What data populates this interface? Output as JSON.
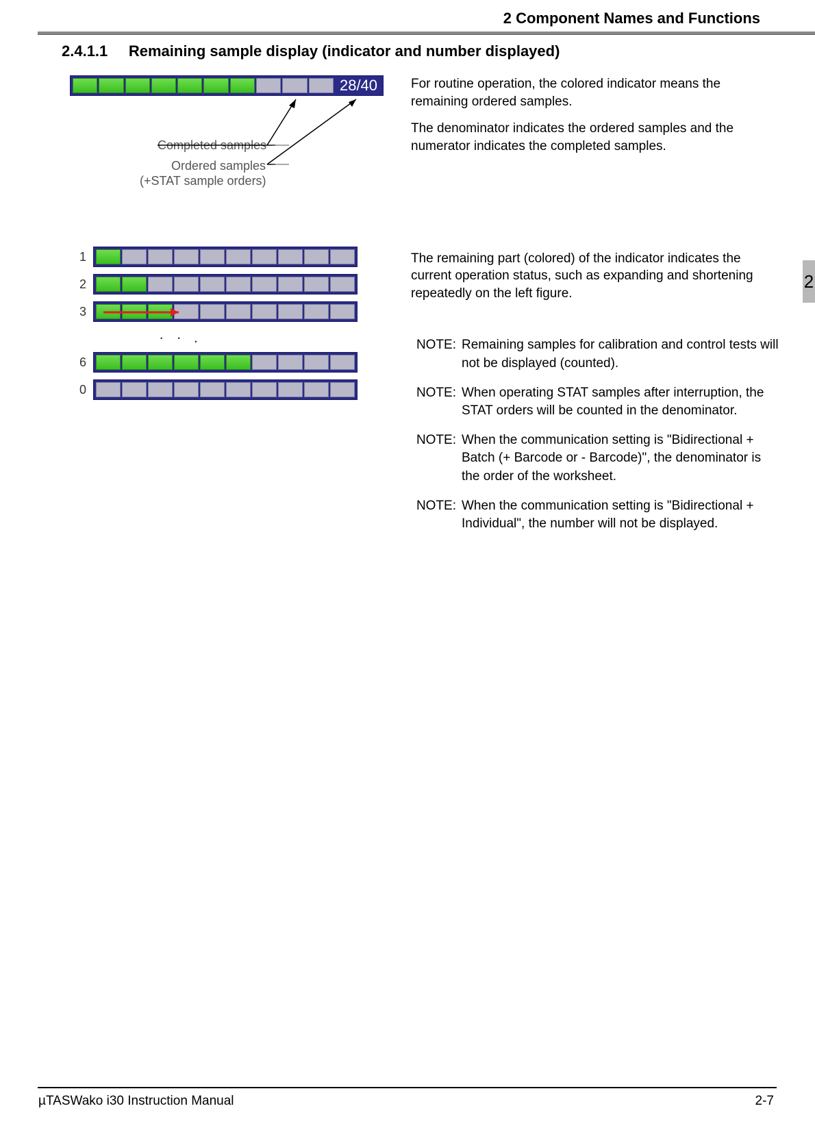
{
  "header": {
    "chapter_title": "2 Component Names and Functions",
    "tab_number": "2"
  },
  "section": {
    "number": "2.4.1.1",
    "title": "Remaining sample display (indicator and number displayed)"
  },
  "figure1": {
    "total_cells": 10,
    "green_cells": 7,
    "counter_text": "28/40",
    "bar_bg": "#2a2a88",
    "cell_grey": "#b8b8c8",
    "cell_green": "#3abf1f",
    "label_completed": "Completed samples",
    "label_ordered": "Ordered samples",
    "label_stat": "(+STAT sample orders)"
  },
  "figure2": {
    "rows": [
      {
        "num": "1",
        "green": 1,
        "total": 10
      },
      {
        "num": "2",
        "green": 2,
        "total": 10
      },
      {
        "num": "3",
        "green": 3,
        "total": 10,
        "red_arrow": true
      },
      {
        "num": "6",
        "green": 6,
        "total": 10
      },
      {
        "num": "0",
        "green": 0,
        "total": 10
      }
    ],
    "dots": "· · .",
    "red_arrow_color": "#e02020"
  },
  "text": {
    "p1": "For routine operation, the colored indicator means the remaining ordered samples.",
    "p2": "The denominator indicates the ordered samples and the numerator indicates the completed samples.",
    "p3": "The remaining part (colored) of the indicator indicates the current operation status, such as expanding and shortening repeatedly on the left figure.",
    "note_label": "NOTE:",
    "notes": [
      "Remaining samples for calibration and control tests will not be displayed (counted).",
      "When operating STAT samples after interruption, the STAT orders will be counted in the denominator.",
      "When the communication setting is \"Bidirectional + Batch (+ Barcode or - Barcode)\", the denominator is the order of the worksheet.",
      "When the communication setting is \"Bidirectional + Individual\", the number will not be displayed."
    ]
  },
  "footer": {
    "left": "µTASWako i30  Instruction Manual",
    "right": "2-7"
  }
}
